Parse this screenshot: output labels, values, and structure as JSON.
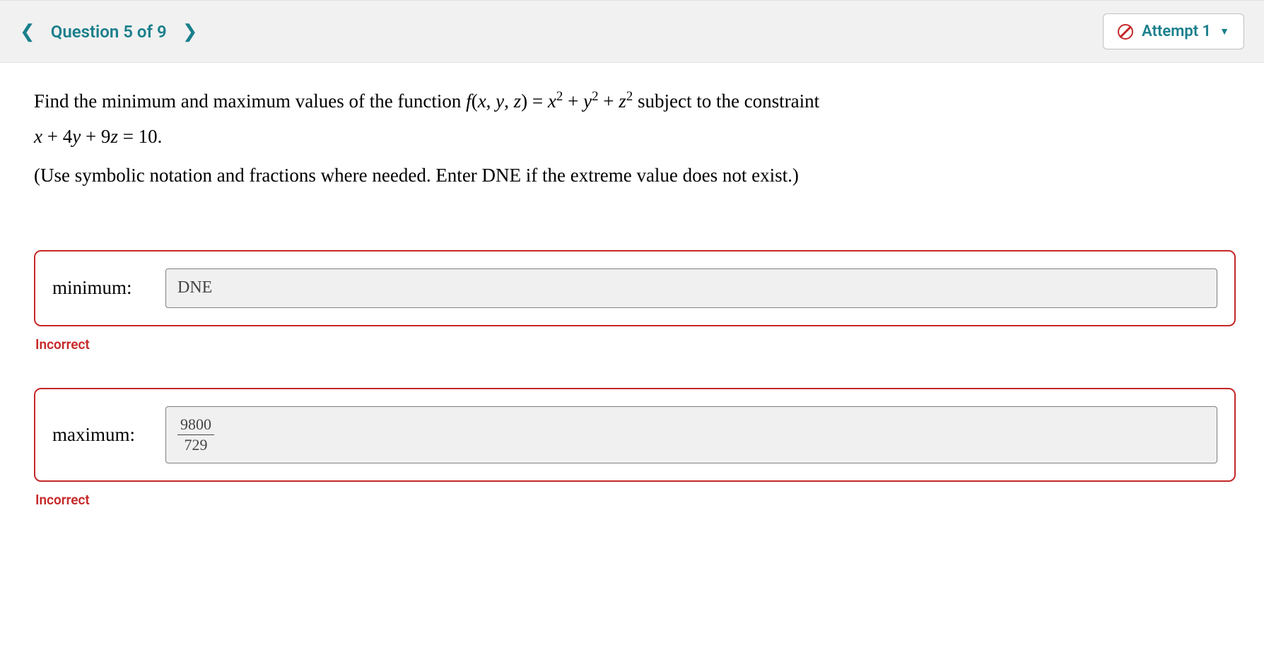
{
  "header": {
    "question_label": "Question 5 of 9",
    "attempt_label": "Attempt 1"
  },
  "problem": {
    "intro_part1": "Find the minimum and maximum values of the function ",
    "func_name": "f",
    "func_args": "(x, y, z)",
    "equals": " = ",
    "expr": "x² + y² + z²",
    "intro_part2": " subject to the constraint",
    "constraint": "x + 4y + 9z = 10.",
    "hint": "(Use symbolic notation and fractions where needed. Enter DNE if the extreme value does not exist.)"
  },
  "answers": {
    "minimum": {
      "label": "minimum:",
      "value": "DNE",
      "feedback": "Incorrect"
    },
    "maximum": {
      "label": "maximum:",
      "numerator": "9800",
      "denominator": "729",
      "feedback": "Incorrect"
    }
  },
  "colors": {
    "accent_teal": "#1a7f8c",
    "error_red": "#c62828",
    "header_bg": "#f1f1f1",
    "input_bg": "#f0f0f0",
    "input_border": "#808080"
  }
}
